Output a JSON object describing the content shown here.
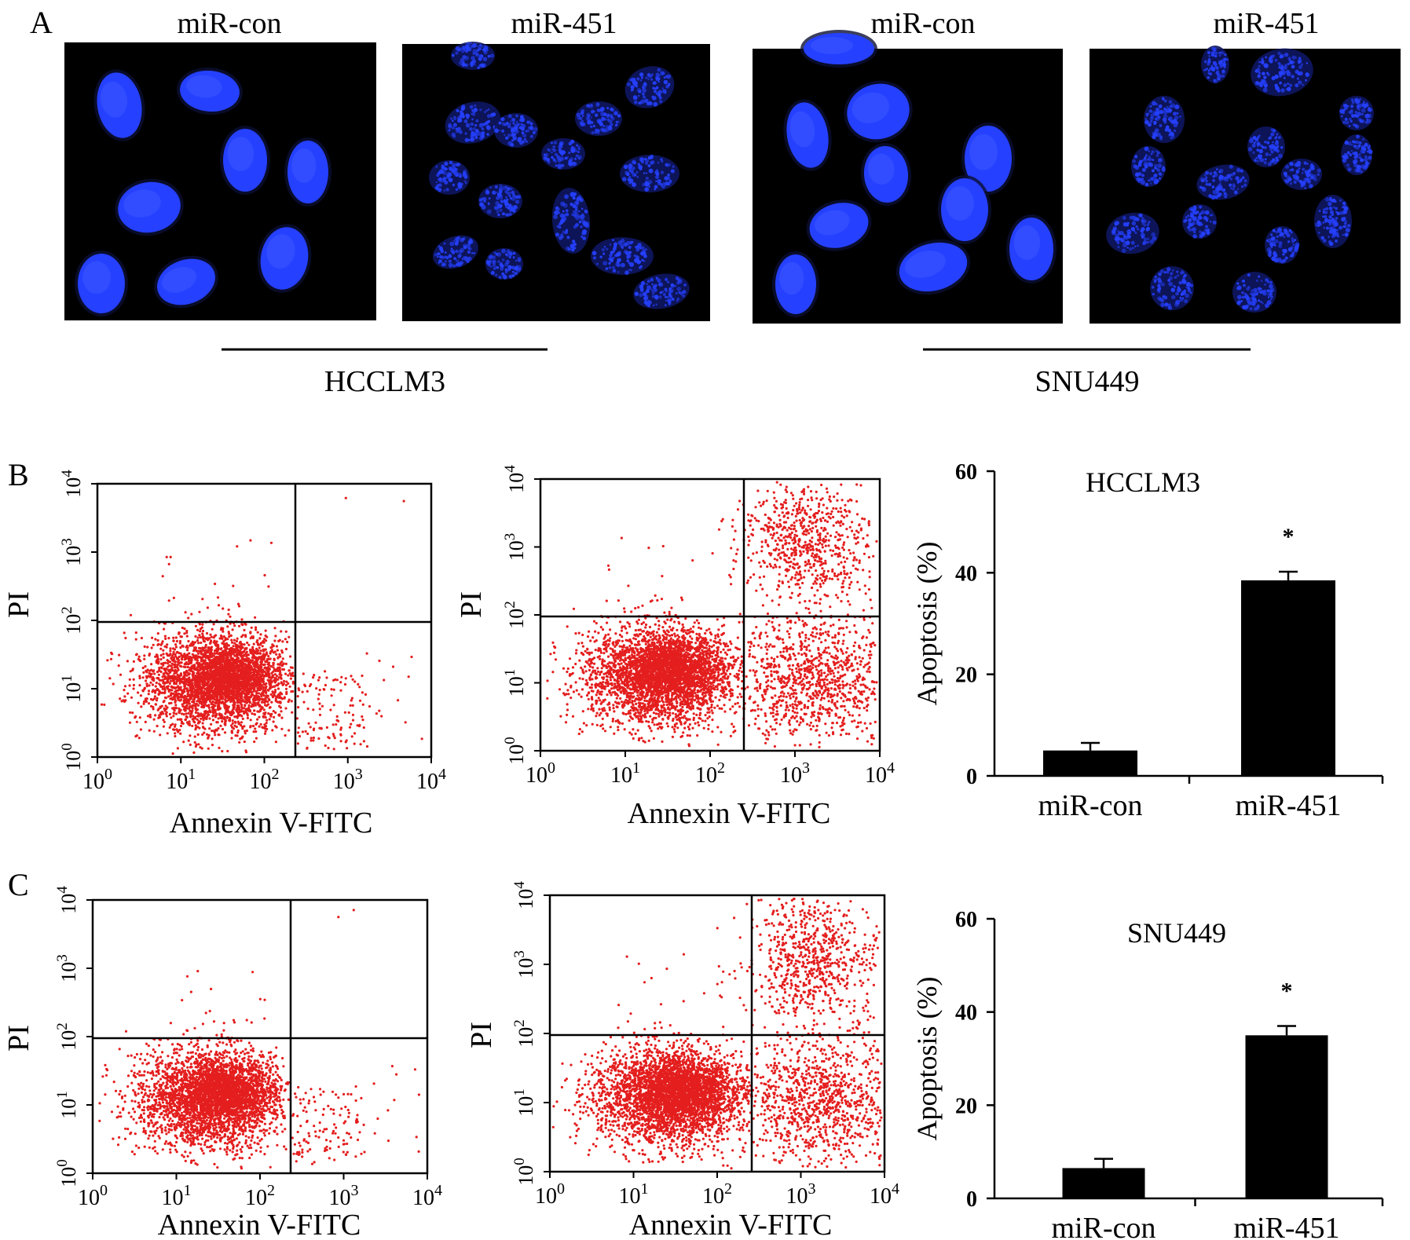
{
  "panels": {
    "A": {
      "label": "A",
      "column_labels": [
        "miR-con",
        "miR-451",
        "miR-con",
        "miR-451"
      ],
      "group_labels": [
        "HCCLM3",
        "SNU449"
      ],
      "nucleus_color": "#2540ff",
      "background_color": "#000000"
    },
    "B": {
      "label": "B",
      "flow_plots": [
        {
          "condition": "miR-con",
          "upper_right_density": "none",
          "lower_right_density": "sparse"
        },
        {
          "condition": "miR-451",
          "upper_right_density": "dense",
          "lower_right_density": "dense"
        }
      ]
    },
    "C": {
      "label": "C",
      "flow_plots": [
        {
          "condition": "miR-con",
          "upper_right_density": "none",
          "lower_right_density": "sparse"
        },
        {
          "condition": "miR-451",
          "upper_right_density": "dense",
          "lower_right_density": "dense"
        }
      ]
    }
  },
  "flow_axes": {
    "x_label": "Annexin V-FITC",
    "y_label": "PI",
    "ticks": [
      "0",
      "1",
      "2",
      "3",
      "4"
    ],
    "tick_base": "10",
    "dot_color": "#e41e1e"
  },
  "chart_data": [
    {
      "type": "bar",
      "title": "HCCLM3",
      "ylabel": "Apoptosis (%)",
      "xlabel": "",
      "categories": [
        "miR-con",
        "miR-451"
      ],
      "values": [
        5,
        38.5
      ],
      "errors": [
        1.5,
        1.7
      ],
      "annotations": [
        "",
        "*"
      ],
      "ylim": [
        0,
        60
      ],
      "yticks": [
        0,
        20,
        40,
        60
      ],
      "bar_color": "#000000"
    },
    {
      "type": "bar",
      "title": "SNU449",
      "ylabel": "Apoptosis (%)",
      "xlabel": "",
      "categories": [
        "miR-con",
        "miR-451"
      ],
      "values": [
        6.5,
        35
      ],
      "errors": [
        2,
        2
      ],
      "annotations": [
        "",
        "*"
      ],
      "ylim": [
        0,
        60
      ],
      "yticks": [
        0,
        20,
        40,
        60
      ],
      "bar_color": "#000000"
    }
  ]
}
